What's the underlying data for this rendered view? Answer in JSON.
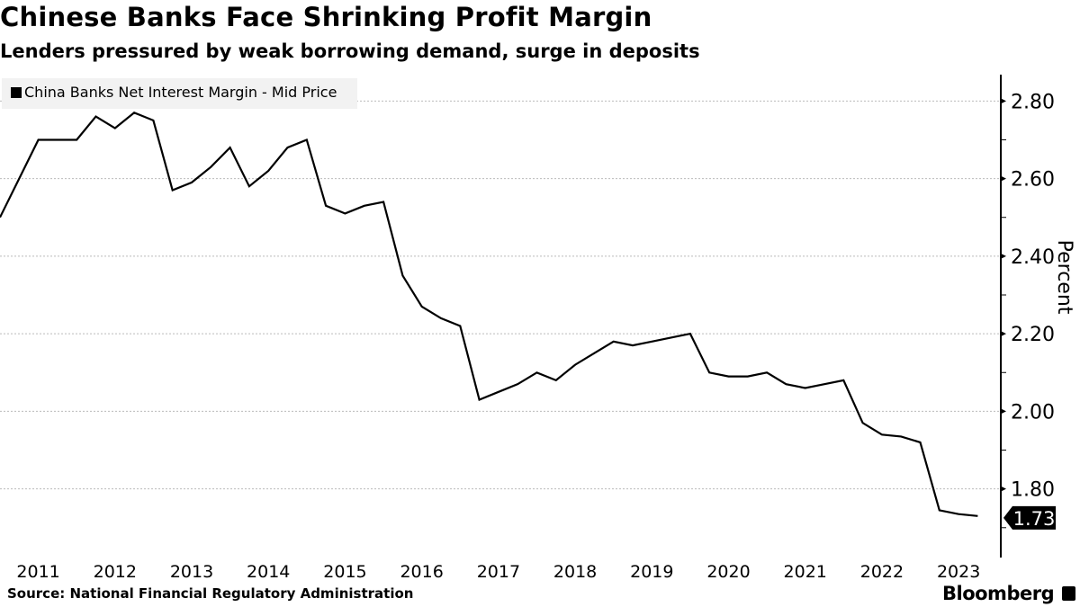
{
  "header": {
    "title": "Chinese Banks Face Shrinking Profit Margin",
    "subtitle": "Lenders pressured by weak borrowing demand, surge in deposits"
  },
  "footer": {
    "source": "Source: National Financial Regulatory Administration",
    "brand": "Bloomberg"
  },
  "chart_data": {
    "type": "line",
    "title": "Chinese Banks Face Shrinking Profit Margin",
    "xlabel": "",
    "ylabel": "Percent",
    "ylim": [
      1.623,
      2.868
    ],
    "xlim": [
      2011,
      2024.05
    ],
    "grid": true,
    "legend_position": "top-left",
    "x_tick_labels": [
      "2011",
      "2012",
      "2013",
      "2014",
      "2015",
      "2016",
      "2017",
      "2018",
      "2019",
      "2020",
      "2021",
      "2022",
      "2023"
    ],
    "y_ticks": [
      2.8,
      2.6,
      2.4,
      2.2,
      2.0,
      1.8
    ],
    "y_tick_labels": [
      "2.80",
      "2.60",
      "2.40",
      "2.20",
      "2.00",
      "1.80"
    ],
    "last_value_label": "1.73",
    "series": [
      {
        "name": "China Banks Net Interest Margin - Mid Price",
        "color": "#000000",
        "start_year": 2011,
        "step_years": 0.25,
        "values": [
          2.5,
          2.6,
          2.7,
          2.7,
          2.7,
          2.76,
          2.73,
          2.77,
          2.75,
          2.57,
          2.59,
          2.63,
          2.68,
          2.58,
          2.62,
          2.68,
          2.7,
          2.53,
          2.51,
          2.53,
          2.54,
          2.35,
          2.27,
          2.24,
          2.22,
          2.03,
          2.05,
          2.07,
          2.1,
          2.08,
          2.12,
          2.15,
          2.18,
          2.17,
          2.18,
          2.19,
          2.2,
          2.1,
          2.09,
          2.09,
          2.1,
          2.07,
          2.06,
          2.07,
          2.08,
          1.97,
          1.94,
          1.935,
          1.92,
          1.745,
          1.735,
          1.73
        ]
      }
    ]
  }
}
